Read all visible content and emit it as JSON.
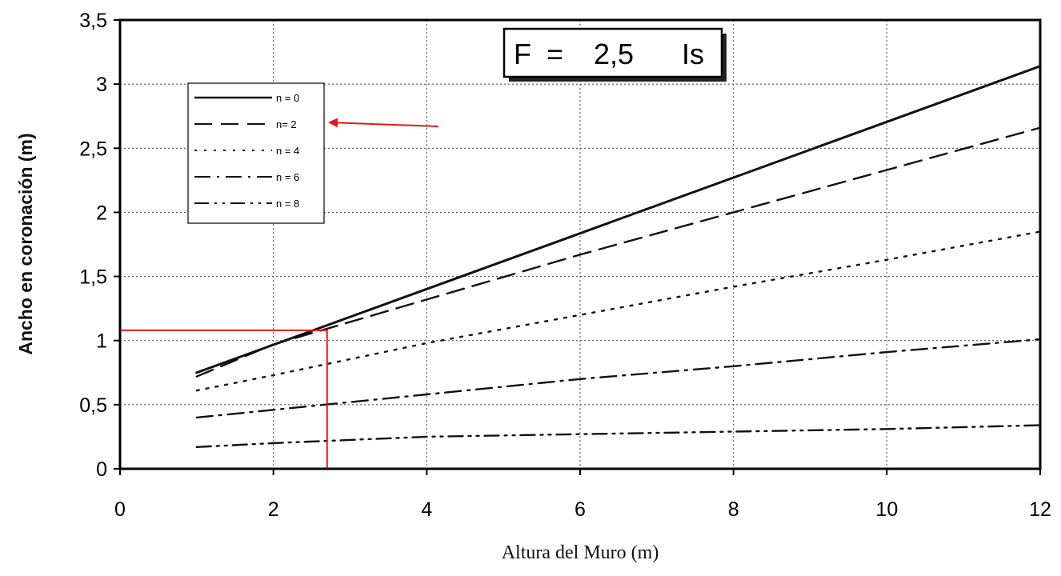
{
  "chart_data": {
    "type": "line",
    "xlabel": "Altura del Muro (m)",
    "ylabel": "Ancho en coronación (m)",
    "xlim": [
      0,
      12
    ],
    "ylim": [
      0,
      3.5
    ],
    "x_ticks": [
      "0",
      "2",
      "4",
      "6",
      "8",
      "10",
      "12"
    ],
    "y_ticks": [
      "0",
      "0,5",
      "1",
      "1,5",
      "2",
      "2,5",
      "3",
      "3,5"
    ],
    "grid": true,
    "legend_position": "top-left",
    "annotation": {
      "lhs": "F",
      "eq": "=",
      "value": "2,5",
      "unit": "Is"
    },
    "series": [
      {
        "name": "n = 0",
        "style": "solid",
        "x": [
          1,
          12
        ],
        "y": [
          0.75,
          3.14
        ]
      },
      {
        "name": "n= 2",
        "style": "dashed",
        "x": [
          1,
          2,
          4,
          6,
          8,
          10,
          12
        ],
        "y": [
          0.72,
          0.97,
          1.32,
          1.67,
          2.0,
          2.33,
          2.66
        ]
      },
      {
        "name": "n = 4",
        "style": "dotted",
        "x": [
          1,
          2,
          4,
          6,
          8,
          10,
          12
        ],
        "y": [
          0.61,
          0.73,
          0.98,
          1.2,
          1.42,
          1.63,
          1.85
        ]
      },
      {
        "name": "n = 6",
        "style": "dash-dot",
        "x": [
          1,
          2,
          4,
          6,
          8,
          10,
          12
        ],
        "y": [
          0.4,
          0.46,
          0.58,
          0.7,
          0.8,
          0.91,
          1.01
        ]
      },
      {
        "name": "n = 8",
        "style": "dash-dot-dot",
        "x": [
          1,
          2,
          4,
          6,
          8,
          10,
          12
        ],
        "y": [
          0.17,
          0.2,
          0.25,
          0.27,
          0.29,
          0.31,
          0.34
        ]
      }
    ],
    "highlight": {
      "x": 2.7,
      "y": 1.08,
      "color": "#e8161b",
      "points_to": "n= 2"
    }
  }
}
